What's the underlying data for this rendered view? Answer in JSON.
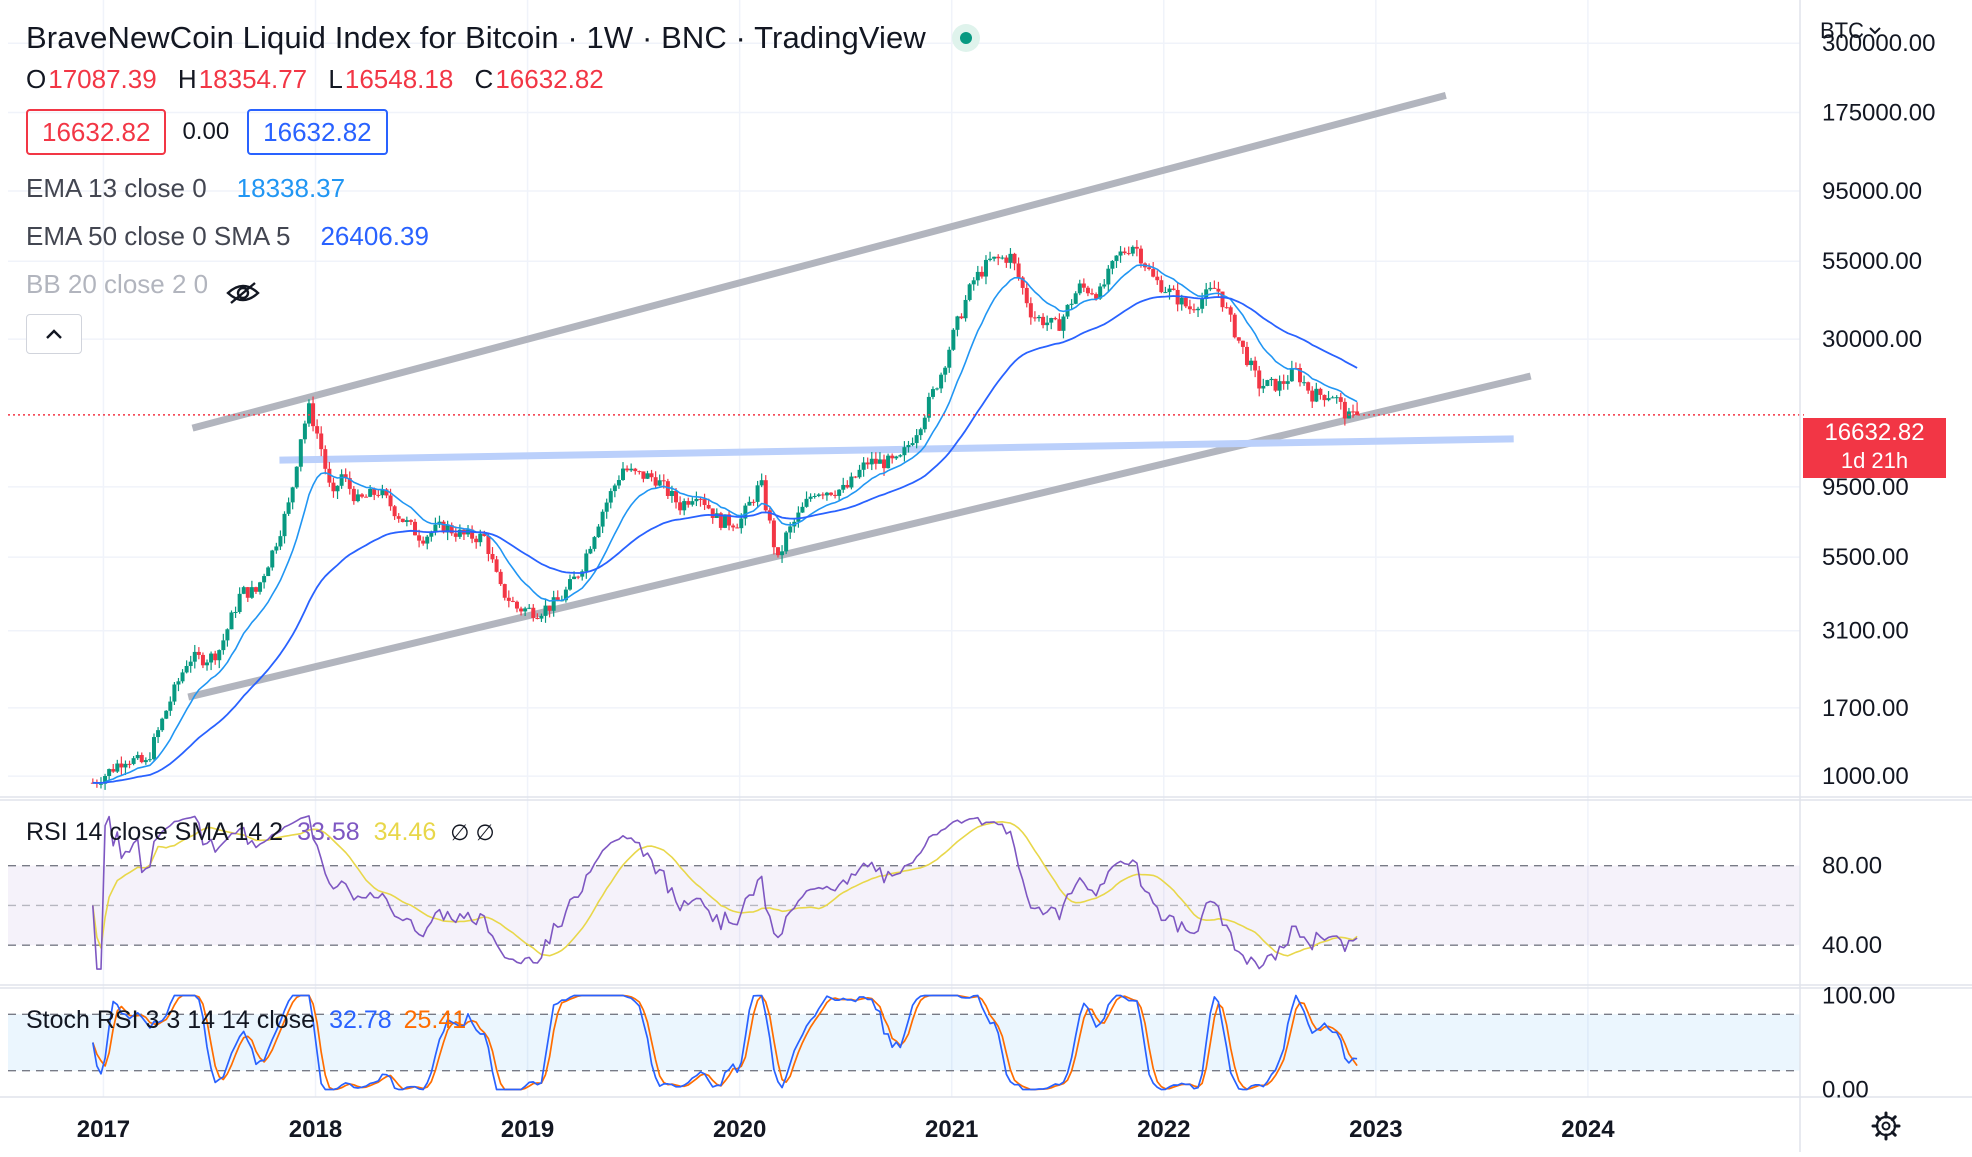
{
  "header": {
    "title": "BraveNewCoin Liquid Index for Bitcoin · 1W · BNC · TradingView",
    "ohlc": [
      {
        "key": "O",
        "value": "17087.39"
      },
      {
        "key": "H",
        "value": "18354.77"
      },
      {
        "key": "L",
        "value": "16548.18"
      },
      {
        "key": "C",
        "value": "16632.82"
      }
    ],
    "sell_price": "16632.82",
    "spread": "0.00",
    "buy_price": "16632.82"
  },
  "indicators": {
    "ema13": {
      "name": "EMA 13 close 0",
      "value": "18338.37",
      "color": "#2196f3"
    },
    "ema50": {
      "name": "EMA 50 close 0 SMA 5",
      "value": "26406.39",
      "color": "#2962ff"
    },
    "bb": {
      "name": "BB 20 close 2 0"
    }
  },
  "rsi": {
    "name": "RSI 14 close SMA 14 2",
    "value": "33.58",
    "ma_value": "34.46",
    "symbols": "∅ ∅",
    "color": "#7e57c2",
    "ma_color": "#e8d74a"
  },
  "stoch": {
    "name": "Stoch RSI 3 3 14 14 close",
    "k_value": "32.78",
    "d_value": "25.41",
    "k_color": "#2962ff",
    "d_color": "#ff6d00"
  },
  "currency": "BTC",
  "last_price": {
    "price": "16632.82",
    "countdown": "1d 21h",
    "color": "#f23645"
  },
  "time_axis": [
    "2017",
    "2018",
    "2019",
    "2020",
    "2021",
    "2022",
    "2023",
    "2024"
  ],
  "price_axis": [
    "300000.00",
    "175000.00",
    "95000.00",
    "55000.00",
    "30000.00",
    "16632.82",
    "9500.00",
    "5500.00",
    "3100.00",
    "1700.00",
    "1000.00"
  ],
  "rsi_axis": [
    "80.00",
    "40.00"
  ],
  "stoch_axis": [
    "100.00",
    "0.00"
  ],
  "chart_data": {
    "type": "candlestick",
    "symbol": "BraveNewCoin Liquid Index for Bitcoin",
    "interval": "1W",
    "price_scale": "log",
    "price_range": [
      850,
      420000
    ],
    "price_ticks": [
      300000,
      175000,
      95000,
      55000,
      30000,
      9500,
      5500,
      3100,
      1700,
      1000
    ],
    "time_range": [
      2016.55,
      2025.0
    ],
    "last_price": 16632.82,
    "ohlc_last": {
      "open": 17087.39,
      "high": 18354.77,
      "low": 16548.18,
      "close": 16632.82
    },
    "close_keypoints": [
      [
        2016.95,
        950
      ],
      [
        2017.0,
        1000
      ],
      [
        2017.1,
        1150
      ],
      [
        2017.2,
        1100
      ],
      [
        2017.3,
        1700
      ],
      [
        2017.4,
        2500
      ],
      [
        2017.5,
        2500
      ],
      [
        2017.55,
        2700
      ],
      [
        2017.65,
        4200
      ],
      [
        2017.72,
        4200
      ],
      [
        2017.8,
        5800
      ],
      [
        2017.88,
        8500
      ],
      [
        2017.93,
        14000
      ],
      [
        2017.97,
        17500
      ],
      [
        2018.02,
        13500
      ],
      [
        2018.08,
        8500
      ],
      [
        2018.12,
        10500
      ],
      [
        2018.2,
        8500
      ],
      [
        2018.3,
        9200
      ],
      [
        2018.4,
        7500
      ],
      [
        2018.5,
        6400
      ],
      [
        2018.6,
        7000
      ],
      [
        2018.7,
        6500
      ],
      [
        2018.8,
        6400
      ],
      [
        2018.87,
        4300
      ],
      [
        2018.95,
        3700
      ],
      [
        2019.05,
        3600
      ],
      [
        2019.15,
        3900
      ],
      [
        2019.25,
        5000
      ],
      [
        2019.35,
        7800
      ],
      [
        2019.45,
        11000
      ],
      [
        2019.5,
        10500
      ],
      [
        2019.6,
        10200
      ],
      [
        2019.72,
        8200
      ],
      [
        2019.8,
        9200
      ],
      [
        2019.9,
        7300
      ],
      [
        2020.0,
        7200
      ],
      [
        2020.1,
        9800
      ],
      [
        2020.18,
        5300
      ],
      [
        2020.22,
        6500
      ],
      [
        2020.35,
        9200
      ],
      [
        2020.5,
        9300
      ],
      [
        2020.6,
        11500
      ],
      [
        2020.75,
        11500
      ],
      [
        2020.85,
        15500
      ],
      [
        2020.95,
        23000
      ],
      [
        2021.02,
        33000
      ],
      [
        2021.1,
        47000
      ],
      [
        2021.18,
        55000
      ],
      [
        2021.28,
        57000
      ],
      [
        2021.38,
        36000
      ],
      [
        2021.5,
        33000
      ],
      [
        2021.6,
        45000
      ],
      [
        2021.7,
        43000
      ],
      [
        2021.78,
        57000
      ],
      [
        2021.86,
        63000
      ],
      [
        2021.95,
        48000
      ],
      [
        2022.05,
        42000
      ],
      [
        2022.12,
        38000
      ],
      [
        2022.25,
        45000
      ],
      [
        2022.35,
        30000
      ],
      [
        2022.45,
        21000
      ],
      [
        2022.55,
        21000
      ],
      [
        2022.62,
        23500
      ],
      [
        2022.7,
        19500
      ],
      [
        2022.8,
        19500
      ],
      [
        2022.87,
        16200
      ],
      [
        2022.92,
        16632.82
      ]
    ],
    "overlays": [
      {
        "name": "EMA 13",
        "value": 18338.37
      },
      {
        "name": "EMA 50 SMA 5",
        "value": 26406.39
      }
    ],
    "trendlines": [
      {
        "name": "upper channel",
        "points": [
          [
            2017.42,
            15000
          ],
          [
            2023.33,
            200000
          ]
        ]
      },
      {
        "name": "lower channel",
        "points": [
          [
            2017.4,
            1850
          ],
          [
            2023.73,
            22500
          ]
        ]
      },
      {
        "name": "horizontal support",
        "points": [
          [
            2017.83,
            11700
          ],
          [
            2023.65,
            13800
          ]
        ]
      }
    ],
    "rsi_range": [
      10,
      103
    ],
    "rsi_bands": [
      30,
      50,
      70
    ],
    "stoch_range": [
      -8,
      108
    ],
    "stoch_bands": [
      20,
      80
    ]
  }
}
